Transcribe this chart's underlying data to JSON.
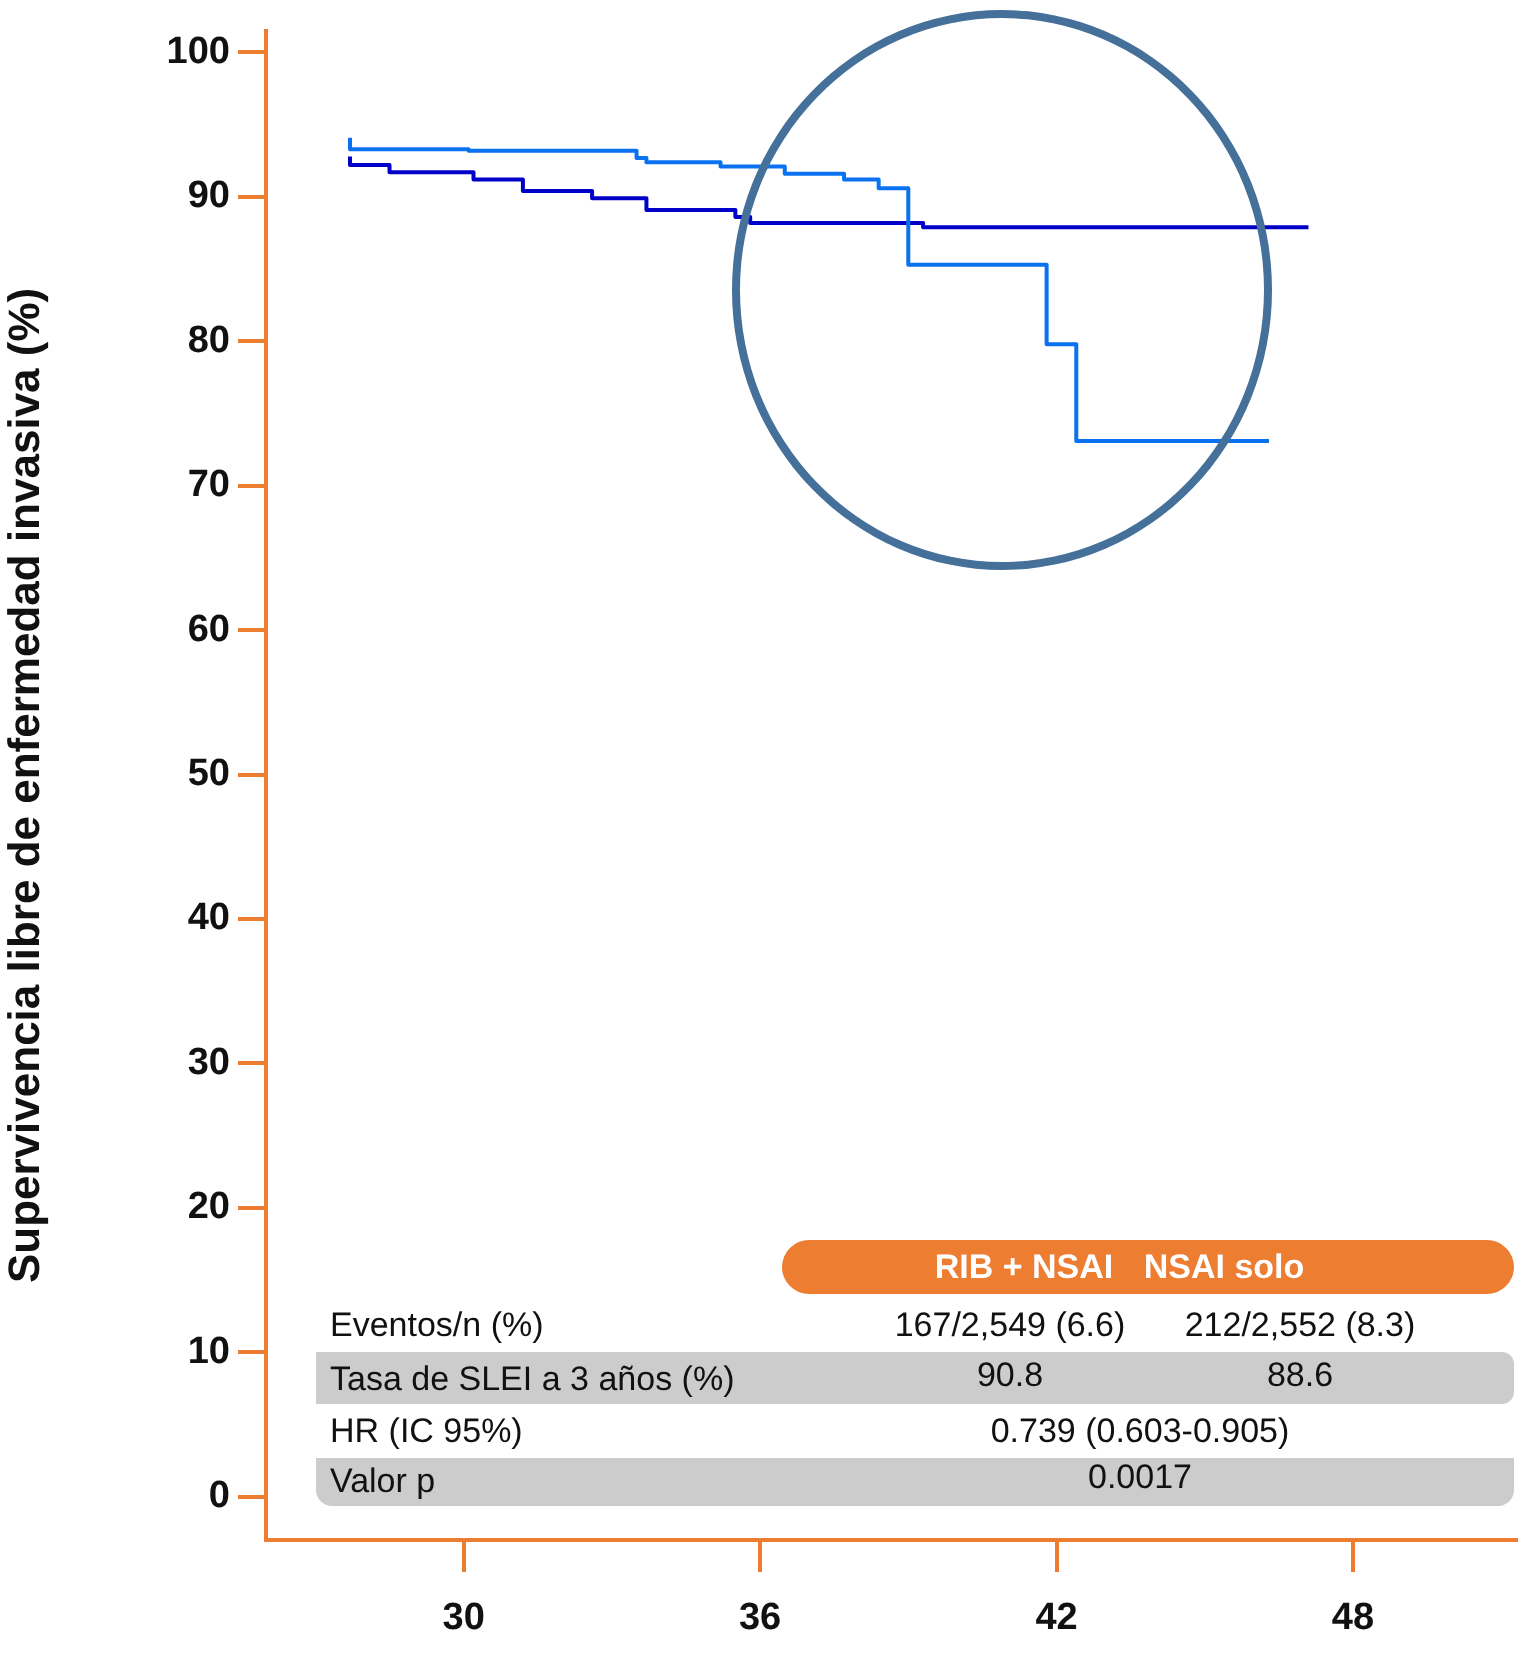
{
  "chart_data": {
    "type": "step",
    "ylabel": "Supervivencia libre de enfermedad invasiva (%)",
    "xlim": [
      26,
      51.3
    ],
    "xticks": [
      30,
      36,
      42,
      48
    ],
    "ylim": [
      -3,
      101.5
    ],
    "yticks": [
      0,
      10,
      20,
      30,
      40,
      50,
      60,
      70,
      80,
      90,
      100
    ],
    "grid": false,
    "legend": false,
    "series": [
      {
        "color": "#0a72f0",
        "x": [
          27.7,
          30.1,
          33.5,
          33.7,
          35.2,
          36.5,
          37.7,
          38.4,
          39.0,
          41.8,
          42.4,
          45.4,
          46.3
        ],
        "values": [
          94.1,
          93.3,
          93.2,
          92.7,
          92.4,
          92.1,
          91.6,
          91.2,
          90.6,
          85.3,
          79.8,
          73.1,
          73.1
        ]
      },
      {
        "color": "#0000c8",
        "x": [
          27.7,
          28.5,
          30.2,
          31.2,
          32.6,
          33.7,
          35.5,
          35.8,
          39.3,
          39.6,
          47.1
        ],
        "values": [
          92.8,
          92.2,
          91.7,
          91.2,
          90.4,
          89.9,
          89.1,
          88.6,
          88.2,
          87.9,
          87.9
        ]
      }
    ],
    "annotations": [
      "RIB + NSAI",
      "NSAI solo",
      "Eventos/n (%)",
      "167/2,549 (6.6)",
      "212/2,552 (8.3)",
      "Tasa de SLEI a 3 años (%)",
      "90.8",
      "88.6",
      "HR (IC 95%)",
      "0.739 (0.603-0.905)",
      "Valor p",
      "0.0017"
    ]
  }
}
